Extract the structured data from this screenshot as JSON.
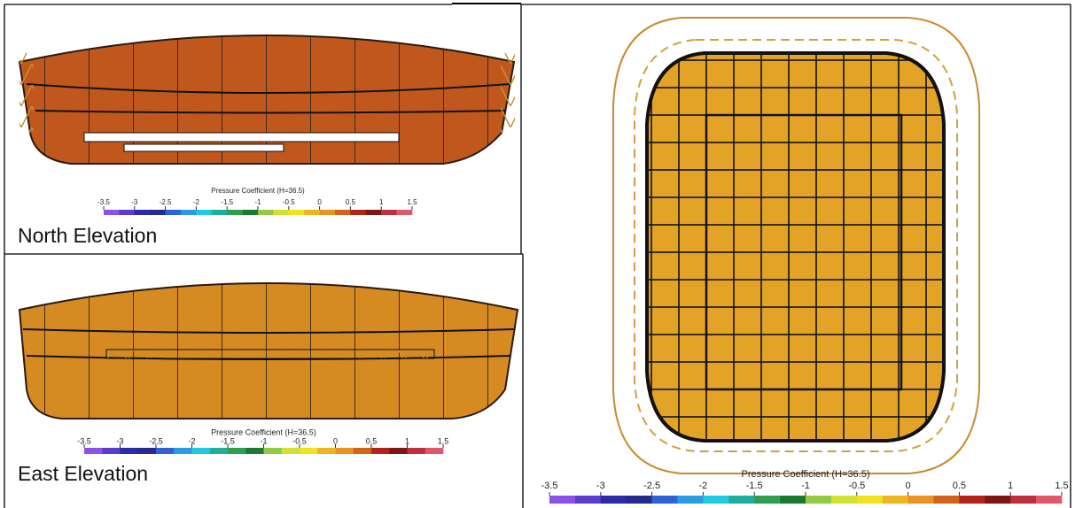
{
  "captions": {
    "north": "North Elevation",
    "east": "East Elevation"
  },
  "colorbar": {
    "title": "Pressure Coefficient (H=36.5)",
    "range": [
      -3.5,
      1.5
    ],
    "ticks": [
      -3.5,
      -3,
      -2.5,
      -2,
      -1.5,
      -1,
      -0.5,
      0,
      0.5,
      1,
      1.5
    ],
    "colors": [
      "#8a52e6",
      "#5a3ccf",
      "#2c2aa4",
      "#262a8c",
      "#2f62d4",
      "#2a9de2",
      "#21c9e2",
      "#1fae9e",
      "#2f9f4f",
      "#1b7a31",
      "#93c943",
      "#d2e233",
      "#f1e21f",
      "#f0b421",
      "#e89322",
      "#d2631a",
      "#b2241a",
      "#7f1614",
      "#bf2f40",
      "#e2566a"
    ]
  }
}
